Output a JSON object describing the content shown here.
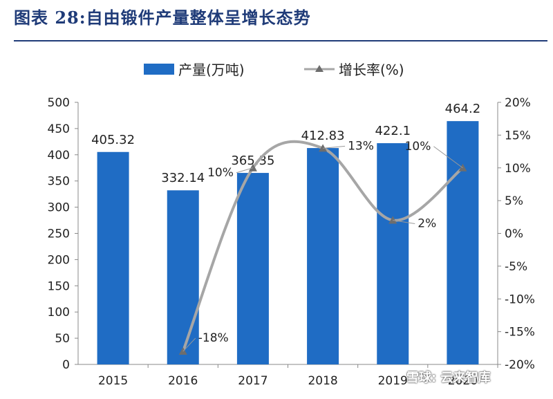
{
  "title": "图表 28:自由锻件产量整体呈增长态势",
  "watermark": "雪球: 云来智库",
  "colors": {
    "bar": "#1f6cc4",
    "line": "#a6a6a6",
    "marker": "#6d6d6d",
    "title": "#1f3b78"
  },
  "chart_data": {
    "type": "bar+line",
    "categories": [
      "2015",
      "2016",
      "2017",
      "2018",
      "2019",
      "2020"
    ],
    "series": [
      {
        "name": "产量(万吨)",
        "type": "bar",
        "axis": "left",
        "values": [
          405.32,
          332.14,
          365.35,
          412.83,
          422.1,
          464.2
        ],
        "labels": [
          "405.32",
          "332.14",
          "365.35",
          "412.83",
          "422.1",
          "464.2"
        ]
      },
      {
        "name": "增长率(%)",
        "type": "line",
        "axis": "right",
        "values": [
          null,
          -18,
          10,
          13,
          2,
          10
        ],
        "labels": [
          "",
          "-18%",
          "10%",
          "13%",
          "2%",
          "10%"
        ]
      }
    ],
    "ylim_left": [
      0,
      500
    ],
    "yticks_left": [
      "0",
      "50",
      "100",
      "150",
      "200",
      "250",
      "300",
      "350",
      "400",
      "450",
      "500"
    ],
    "ylim_right": [
      -20,
      20
    ],
    "yticks_right": [
      "-20%",
      "-15%",
      "-10%",
      "-5%",
      "0%",
      "5%",
      "10%",
      "15%",
      "20%"
    ],
    "xtick_labels": [
      "2015",
      "2016",
      "2017",
      "2018",
      "2019",
      "2020"
    ],
    "legend": [
      "产量(万吨)",
      "增长率(%)"
    ],
    "grid": false
  }
}
